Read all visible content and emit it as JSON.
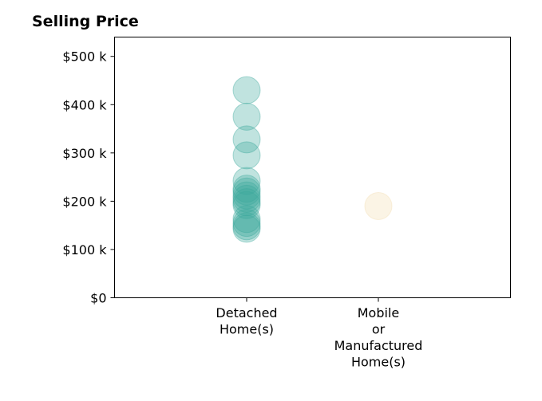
{
  "chart_data": {
    "type": "scatter",
    "title": "Selling Price",
    "xlabel": "",
    "ylabel": "",
    "categories": [
      [
        "Detached",
        "Home(s)"
      ],
      [
        "Mobile",
        "or",
        "Manufactured",
        "Home(s)"
      ]
    ],
    "y_ticks": [
      {
        "value": 0,
        "label": "$0"
      },
      {
        "value": 100000,
        "label": "$100 k"
      },
      {
        "value": 200000,
        "label": "$200 k"
      },
      {
        "value": 300000,
        "label": "$300 k"
      },
      {
        "value": 400000,
        "label": "$400 k"
      },
      {
        "value": 500000,
        "label": "$500 k"
      }
    ],
    "ylim": [
      0,
      540000
    ],
    "grid": false,
    "legend": "none",
    "series": [
      {
        "category_index": 0,
        "color": "#3aa89c",
        "values": [
          430000,
          375000,
          328000,
          295000,
          242000,
          226000,
          220000,
          212000,
          205000,
          198000,
          192000,
          163000,
          155000,
          148000,
          143000
        ]
      },
      {
        "category_index": 1,
        "color": "#f2dcae",
        "values": [
          190000
        ]
      }
    ]
  }
}
